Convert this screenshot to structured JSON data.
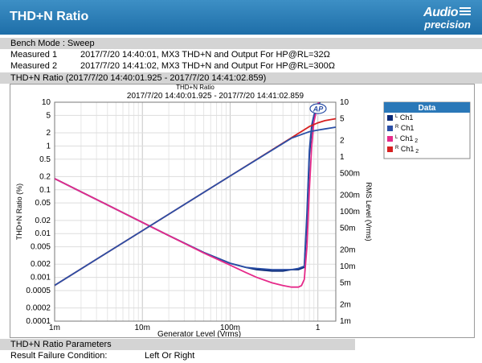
{
  "header": {
    "title": "THD+N Ratio",
    "logo": "Audio precision"
  },
  "bench": {
    "text": "Bench Mode : Sweep"
  },
  "measured": [
    {
      "label": "Measured 1",
      "text": "2017/7/20 14:40:01, MX3  THD+N and Output For HP@RL=32Ω"
    },
    {
      "label": "Measured 2",
      "text": "2017/7/20 14:41:02, MX3  THD+N and Output For HP@RL=300Ω"
    }
  ],
  "section_title": "THD+N Ratio (2017/7/20 14:40:01.925 - 2017/7/20 14:41:02.859)",
  "params": {
    "title": "THD+N Ratio Parameters",
    "label": "Result Failure Condition:",
    "value": "Left Or Right"
  },
  "chart_data": {
    "type": "line",
    "title": "THD+N Ratio",
    "subtitle": "2017/7/20 14:40:01.925 - 2017/7/20 14:41:02.859",
    "xlabel": "Generator Level (Vrms)",
    "ylabel": "THD+N Ratio (%)",
    "y2label": "RMS Level (Vrms)",
    "xscale": "log",
    "yscale": "log",
    "y2scale": "log",
    "xlim": [
      0.001,
      1.6
    ],
    "ylim": [
      0.0001,
      10
    ],
    "y2lim": [
      0.001,
      10
    ],
    "xticks": [
      0.001,
      0.01,
      0.1,
      1
    ],
    "xtick_labels": [
      "1m",
      "10m",
      "100m",
      "1"
    ],
    "yticks": [
      10,
      5,
      2,
      1,
      0.5,
      0.2,
      0.1,
      0.05,
      0.02,
      0.01,
      0.005,
      0.002,
      0.001,
      0.0005,
      0.0002,
      0.0001
    ],
    "ytick_labels": [
      "10",
      "5",
      "2",
      "1",
      "0.5",
      "0.2",
      "0.1",
      "0.05",
      "0.02",
      "0.01",
      "0.005",
      "0.002",
      "0.001",
      "0.0005",
      "0.0002",
      "0.0001"
    ],
    "y2ticks": [
      10,
      5,
      2,
      1,
      0.5,
      0.2,
      0.1,
      0.05,
      0.02,
      0.01,
      0.005,
      0.002,
      0.001
    ],
    "y2tick_labels": [
      "10",
      "5",
      "2",
      "1",
      "500m",
      "200m",
      "100m",
      "50m",
      "20m",
      "10m",
      "5m",
      "2m",
      "1m"
    ],
    "grid": true,
    "legend": {
      "title": "Data",
      "placement": "right"
    },
    "series": [
      {
        "name": "L Ch1",
        "sup": "L",
        "sub": "",
        "axis": "left",
        "color": "#0a2a78",
        "x": [
          0.001,
          0.002,
          0.005,
          0.01,
          0.02,
          0.05,
          0.1,
          0.15,
          0.2,
          0.3,
          0.4,
          0.5,
          0.6,
          0.7,
          0.75,
          0.8,
          0.85,
          0.9,
          1.0,
          1.2
        ],
        "y": [
          0.18,
          0.09,
          0.036,
          0.018,
          0.009,
          0.0037,
          0.0021,
          0.0017,
          0.0015,
          0.0014,
          0.0014,
          0.0015,
          0.0015,
          0.0017,
          0.02,
          0.6,
          2.5,
          4.5,
          8,
          18
        ]
      },
      {
        "name": "R Ch1",
        "sup": "R",
        "sub": "",
        "axis": "left",
        "color": "#2b4fa6",
        "x": [
          0.001,
          0.002,
          0.005,
          0.01,
          0.02,
          0.05,
          0.1,
          0.15,
          0.2,
          0.3,
          0.4,
          0.5,
          0.6,
          0.7,
          0.75,
          0.8,
          0.85,
          0.9,
          1.0,
          1.2
        ],
        "y": [
          0.18,
          0.09,
          0.036,
          0.018,
          0.009,
          0.0037,
          0.0021,
          0.0017,
          0.0016,
          0.0015,
          0.0015,
          0.0015,
          0.0016,
          0.0018,
          0.03,
          0.8,
          3,
          5,
          9,
          20
        ]
      },
      {
        "name": "L Ch1 2",
        "sup": "L",
        "sub": "2",
        "axis": "left",
        "color": "#e62a8a",
        "x": [
          0.001,
          0.002,
          0.005,
          0.01,
          0.02,
          0.05,
          0.1,
          0.15,
          0.2,
          0.3,
          0.4,
          0.5,
          0.6,
          0.65,
          0.7,
          0.75,
          0.8,
          0.85,
          0.9,
          1.0,
          1.2
        ],
        "y": [
          0.18,
          0.09,
          0.036,
          0.018,
          0.009,
          0.0036,
          0.0019,
          0.0013,
          0.001,
          0.00075,
          0.00065,
          0.0006,
          0.0006,
          0.00065,
          0.0009,
          0.005,
          0.1,
          1.0,
          3.5,
          9,
          20
        ]
      },
      {
        "name": "R Ch1 2",
        "sup": "R",
        "sub": "2",
        "axis": "right",
        "color": "#d62020",
        "x": [
          0.001,
          0.01,
          0.1,
          0.5,
          0.8,
          1.0,
          1.2,
          1.6
        ],
        "y": [
          0.0045,
          0.045,
          0.45,
          2.25,
          3.6,
          4.2,
          4.6,
          5.0
        ]
      },
      {
        "name": "R Ch1",
        "sup": "R",
        "sub": "",
        "axis": "right",
        "color": "#2b4fa6",
        "legend": false,
        "x": [
          0.001,
          0.01,
          0.1,
          0.5,
          0.8,
          1.0,
          1.2,
          1.6
        ],
        "y": [
          0.0045,
          0.045,
          0.45,
          2.2,
          2.9,
          3.1,
          3.25,
          3.5
        ]
      }
    ],
    "annotation": "AP"
  }
}
